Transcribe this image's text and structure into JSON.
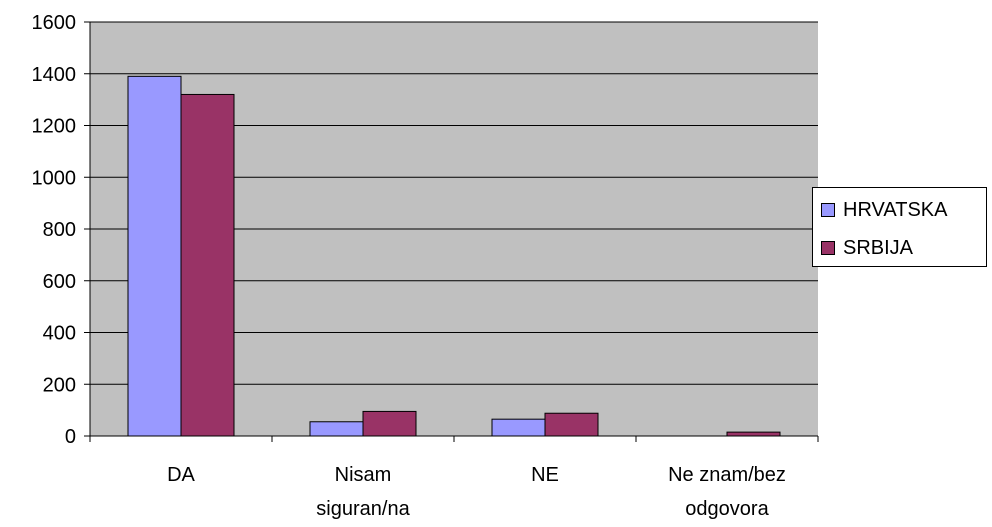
{
  "chart_data": {
    "type": "bar",
    "categories": [
      [
        "DA"
      ],
      [
        "Nisam",
        "siguran/na"
      ],
      [
        "NE"
      ],
      [
        "Ne znam/bez",
        "odgovora"
      ]
    ],
    "series": [
      {
        "name": "HRVATSKA",
        "color": "#9999FF",
        "values": [
          1390,
          55,
          65,
          0
        ]
      },
      {
        "name": "SRBIJA",
        "color": "#993366",
        "values": [
          1320,
          95,
          88,
          15
        ]
      }
    ],
    "yticks": [
      0,
      200,
      400,
      600,
      800,
      1000,
      1200,
      1400,
      1600
    ],
    "ylim": [
      0,
      1600
    ],
    "plot_background": "#C0C0C0",
    "grid": true,
    "legend_position": "right"
  }
}
